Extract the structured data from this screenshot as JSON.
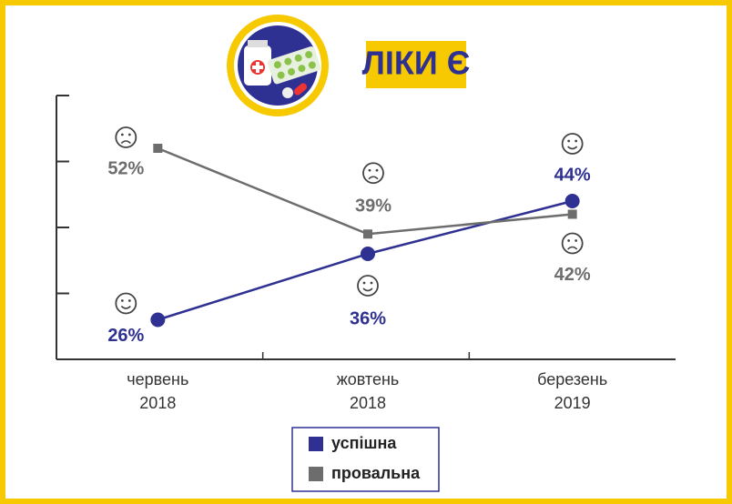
{
  "chart_data": {
    "type": "line",
    "title": "ЛІКИ Є",
    "categories": [
      "червень 2018",
      "жовтень 2018",
      "березень 2019"
    ],
    "series": [
      {
        "name": "успішна",
        "color": "#2e3192",
        "values": [
          26,
          36,
          44
        ],
        "value_labels": [
          "26%",
          "36%",
          "44%"
        ]
      },
      {
        "name": "провальна",
        "color": "#6d6d6d",
        "values": [
          52,
          39,
          42
        ],
        "value_labels": [
          "52%",
          "39%",
          "42%"
        ]
      }
    ],
    "ylim": [
      20,
      60
    ],
    "yticks": [
      20,
      30,
      40,
      50,
      60
    ]
  }
}
